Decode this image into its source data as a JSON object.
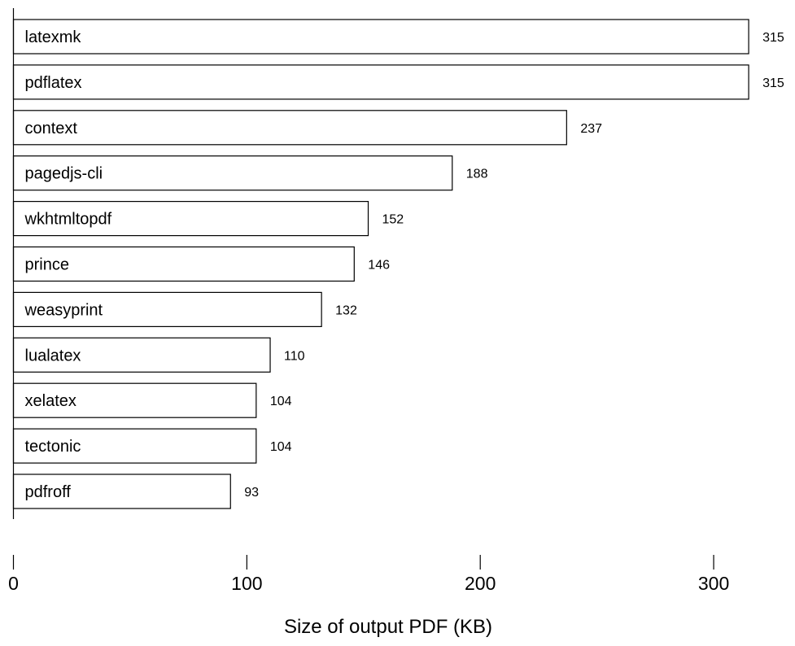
{
  "chart_data": {
    "type": "bar",
    "orientation": "horizontal",
    "categories": [
      "latexmk",
      "pdflatex",
      "context",
      "pagedjs-cli",
      "wkhtmltopdf",
      "prince",
      "weasyprint",
      "lualatex",
      "xelatex",
      "tectonic",
      "pdfroff"
    ],
    "values": [
      315,
      315,
      237,
      188,
      152,
      146,
      132,
      110,
      104,
      104,
      93
    ],
    "value_labels": [
      "315",
      "315",
      "237",
      "188",
      "152",
      "146",
      "132",
      "110",
      "104",
      "104",
      "93"
    ],
    "xlabel": "Size of output PDF (KB)",
    "ylabel": "",
    "xlim": [
      0,
      330
    ],
    "xticks": [
      0,
      100,
      200,
      300
    ],
    "xtick_labels": [
      "0",
      "100",
      "200",
      "300"
    ],
    "grid": false,
    "legend": "none",
    "colors": {
      "bar_fill": "#ffffff",
      "bar_stroke": "#000000",
      "text": "#000000"
    }
  }
}
